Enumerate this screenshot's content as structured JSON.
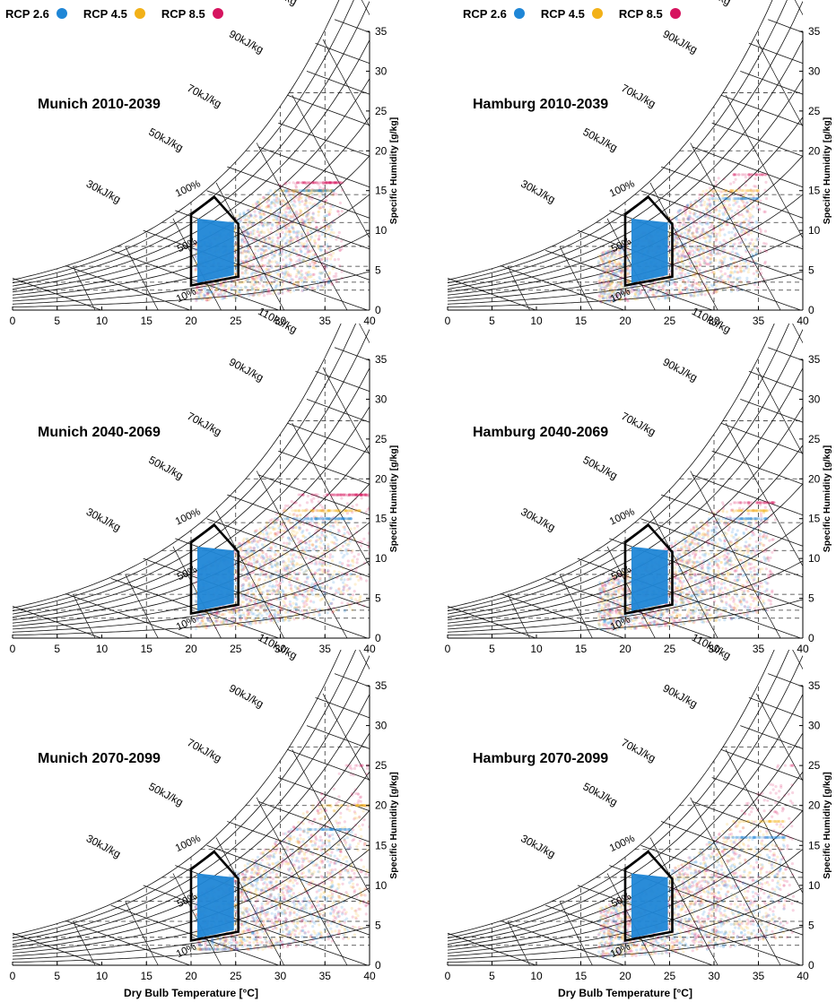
{
  "legend": {
    "items": [
      {
        "label": "RCP 2.6",
        "color": "#1f86d6"
      },
      {
        "label": "RCP 4.5",
        "color": "#f2b118"
      },
      {
        "label": "RCP 8.5",
        "color": "#d6145f"
      }
    ]
  },
  "axes": {
    "xlabel": "Dry Bulb Temperature [°C]",
    "ylabel": "Specific Humidity [g/kg]",
    "xlim": [
      0,
      40
    ],
    "ylim": [
      0,
      35
    ],
    "xticks": [
      "0",
      "5",
      "10",
      "15",
      "20",
      "25",
      "30",
      "35",
      "40"
    ],
    "yticks": [
      "0",
      "5",
      "10",
      "15",
      "20",
      "25",
      "30",
      "35"
    ],
    "enthalpy_labels": [
      "30kJ/kg",
      "50kJ/kg",
      "70kJ/kg",
      "90kJ/kg",
      "110kJ/kg"
    ],
    "rh_labels": [
      "100%",
      "50%",
      "10%"
    ]
  },
  "chart_data": [
    {
      "type": "scatter",
      "title": "Munich 2010-2039",
      "city": "Munich",
      "period": "2010-2039",
      "xlim": [
        0,
        40
      ],
      "ylim": [
        0,
        35
      ],
      "comfort_zone": [
        [
          20,
          3.1
        ],
        [
          20,
          12
        ],
        [
          22.6,
          14.2
        ],
        [
          25.3,
          10.8
        ],
        [
          25.3,
          4.2
        ]
      ],
      "series": [
        {
          "name": "RCP 2.6",
          "x_range": [
            20.5,
            36
          ],
          "y_range": [
            1,
            15
          ]
        },
        {
          "name": "RCP 4.5",
          "x_range": [
            20.5,
            36
          ],
          "y_range": [
            1,
            15
          ]
        },
        {
          "name": "RCP 8.5",
          "x_range": [
            20.5,
            37
          ],
          "y_range": [
            1,
            16
          ]
        }
      ]
    },
    {
      "type": "scatter",
      "title": "Hamburg 2010-2039",
      "city": "Hamburg",
      "period": "2010-2039",
      "xlim": [
        0,
        40
      ],
      "ylim": [
        0,
        35
      ],
      "comfort_zone": [
        [
          20,
          3.1
        ],
        [
          20,
          12
        ],
        [
          22.6,
          14.2
        ],
        [
          25.3,
          10.8
        ],
        [
          25.3,
          4.2
        ]
      ],
      "series": [
        {
          "name": "RCP 2.6",
          "x_range": [
            17,
            35
          ],
          "y_range": [
            1,
            14
          ]
        },
        {
          "name": "RCP 4.5",
          "x_range": [
            17,
            35
          ],
          "y_range": [
            1,
            15
          ]
        },
        {
          "name": "RCP 8.5",
          "x_range": [
            17,
            36
          ],
          "y_range": [
            1,
            17
          ]
        }
      ]
    },
    {
      "type": "scatter",
      "title": "Munich 2040-2069",
      "city": "Munich",
      "period": "2040-2069",
      "xlim": [
        0,
        40
      ],
      "ylim": [
        0,
        35
      ],
      "comfort_zone": [
        [
          20,
          3.1
        ],
        [
          20,
          12
        ],
        [
          22.6,
          14.2
        ],
        [
          25.3,
          10.8
        ],
        [
          25.3,
          4.2
        ]
      ],
      "series": [
        {
          "name": "RCP 2.6",
          "x_range": [
            20.5,
            38
          ],
          "y_range": [
            1,
            15
          ]
        },
        {
          "name": "RCP 4.5",
          "x_range": [
            20.5,
            39
          ],
          "y_range": [
            1,
            16
          ]
        },
        {
          "name": "RCP 8.5",
          "x_range": [
            20.5,
            40
          ],
          "y_range": [
            1,
            18
          ]
        }
      ]
    },
    {
      "type": "scatter",
      "title": "Hamburg 2040-2069",
      "city": "Hamburg",
      "period": "2040-2069",
      "xlim": [
        0,
        40
      ],
      "ylim": [
        0,
        35
      ],
      "comfort_zone": [
        [
          20,
          3.1
        ],
        [
          20,
          12
        ],
        [
          22.6,
          14.2
        ],
        [
          25.3,
          10.8
        ],
        [
          25.3,
          4.2
        ]
      ],
      "series": [
        {
          "name": "RCP 2.6",
          "x_range": [
            17,
            36
          ],
          "y_range": [
            1,
            15
          ]
        },
        {
          "name": "RCP 4.5",
          "x_range": [
            17,
            36
          ],
          "y_range": [
            1,
            16
          ]
        },
        {
          "name": "RCP 8.5",
          "x_range": [
            17,
            37
          ],
          "y_range": [
            1,
            17
          ]
        }
      ]
    },
    {
      "type": "scatter",
      "title": "Munich 2070-2099",
      "city": "Munich",
      "period": "2070-2099",
      "xlim": [
        0,
        40
      ],
      "ylim": [
        0,
        35
      ],
      "comfort_zone": [
        [
          20,
          3.1
        ],
        [
          20,
          12
        ],
        [
          22.6,
          14.2
        ],
        [
          25.3,
          10.8
        ],
        [
          25.3,
          4.2
        ]
      ],
      "series": [
        {
          "name": "RCP 2.6",
          "x_range": [
            20.5,
            38
          ],
          "y_range": [
            2,
            17
          ]
        },
        {
          "name": "RCP 4.5",
          "x_range": [
            20.5,
            40
          ],
          "y_range": [
            2,
            20
          ]
        },
        {
          "name": "RCP 8.5",
          "x_range": [
            20.5,
            40
          ],
          "y_range": [
            2,
            25
          ]
        }
      ]
    },
    {
      "type": "scatter",
      "title": "Hamburg 2070-2099",
      "city": "Hamburg",
      "period": "2070-2099",
      "xlim": [
        0,
        40
      ],
      "ylim": [
        0,
        35
      ],
      "comfort_zone": [
        [
          20,
          3.1
        ],
        [
          20,
          12
        ],
        [
          22.6,
          14.2
        ],
        [
          25.3,
          10.8
        ],
        [
          25.3,
          4.2
        ]
      ],
      "series": [
        {
          "name": "RCP 2.6",
          "x_range": [
            17,
            38
          ],
          "y_range": [
            1,
            16
          ]
        },
        {
          "name": "RCP 4.5",
          "x_range": [
            17,
            38
          ],
          "y_range": [
            1,
            18
          ]
        },
        {
          "name": "RCP 8.5",
          "x_range": [
            17,
            39
          ],
          "y_range": [
            1,
            25
          ]
        }
      ]
    }
  ]
}
